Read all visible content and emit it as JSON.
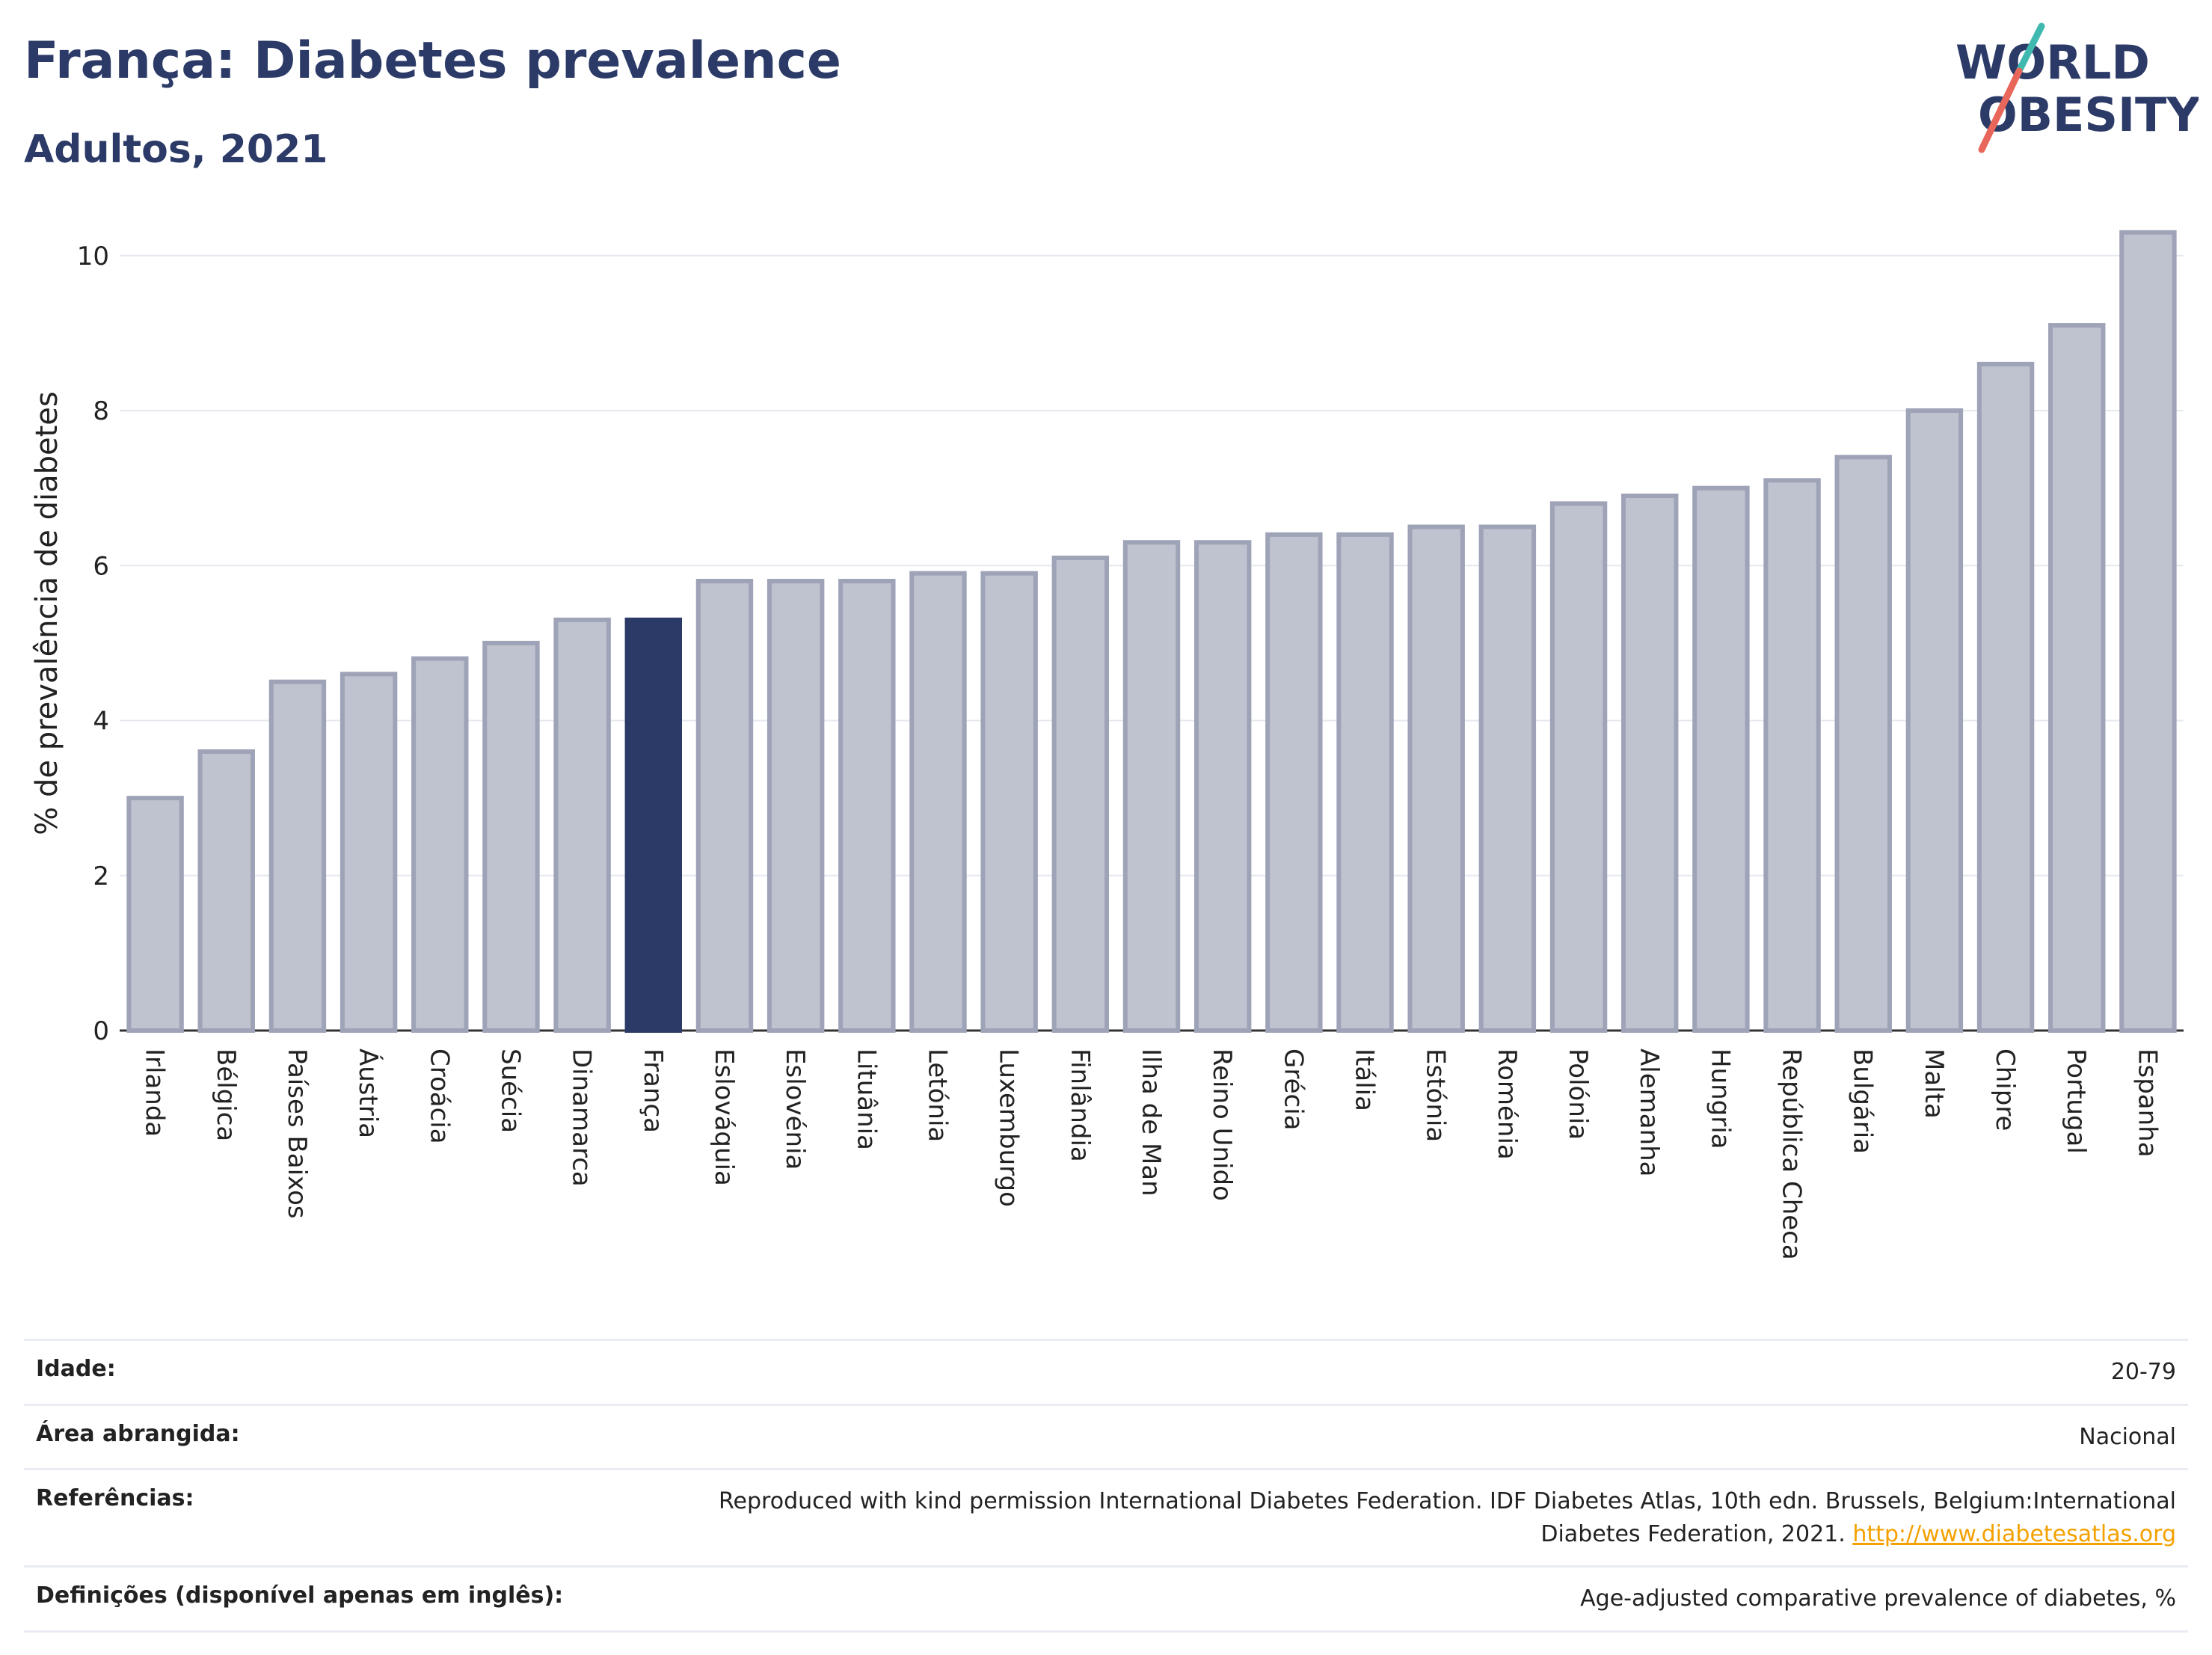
{
  "header": {
    "title": "França: Diabetes prevalence",
    "subtitle": "Adultos, 2021"
  },
  "logo": {
    "line1": "WORLD",
    "line2": "OBESITY",
    "accent_teal": "#3fb9b0",
    "accent_red": "#e8675a",
    "text_color": "#2b3a67"
  },
  "colors": {
    "highlight": "#2b3a67",
    "bar_fill": "#bfc2cf",
    "bar_stroke": "#9ea3b8"
  },
  "chart_data": {
    "type": "bar",
    "xlabel": "",
    "ylabel": "% de prevalência de diabetes",
    "ylim": [
      0,
      10.5
    ],
    "yticks": [
      0,
      2,
      4,
      6,
      8,
      10
    ],
    "grid": true,
    "highlight": "França",
    "categories": [
      "Irlanda",
      "Bélgica",
      "Países Baixos",
      "Áustria",
      "Croácia",
      "Suécia",
      "Dinamarca",
      "França",
      "Eslováquia",
      "Eslovénia",
      "Lituânia",
      "Letónia",
      "Luxemburgo",
      "Finlândia",
      "Ilha de Man",
      "Reino Unido",
      "Grécia",
      "Itália",
      "Estónia",
      "Roménia",
      "Polónia",
      "Alemanha",
      "Hungria",
      "República Checa",
      "Bulgária",
      "Malta",
      "Chipre",
      "Portugal",
      "Espanha"
    ],
    "values": [
      3.0,
      3.6,
      4.5,
      4.6,
      4.8,
      5.0,
      5.3,
      5.3,
      5.8,
      5.8,
      5.8,
      5.9,
      5.9,
      6.1,
      6.3,
      6.3,
      6.4,
      6.4,
      6.5,
      6.5,
      6.8,
      6.9,
      7.0,
      7.1,
      7.4,
      8.0,
      8.6,
      9.1,
      10.3
    ]
  },
  "info": {
    "rows": [
      {
        "label": "Idade:",
        "value": "20-79"
      },
      {
        "label": "Área abrangida:",
        "value": "Nacional"
      },
      {
        "label": "Referências:",
        "value": "Reproduced with kind permission International Diabetes Federation.  IDF Diabetes Atlas, 10th edn. Brussels, Belgium:International Diabetes Federation, 2021.",
        "link": "http://www.diabetesatlas.org"
      },
      {
        "label": "Definições (disponível apenas em inglês):",
        "value": "Age-adjusted comparative prevalence of diabetes, %"
      }
    ]
  }
}
